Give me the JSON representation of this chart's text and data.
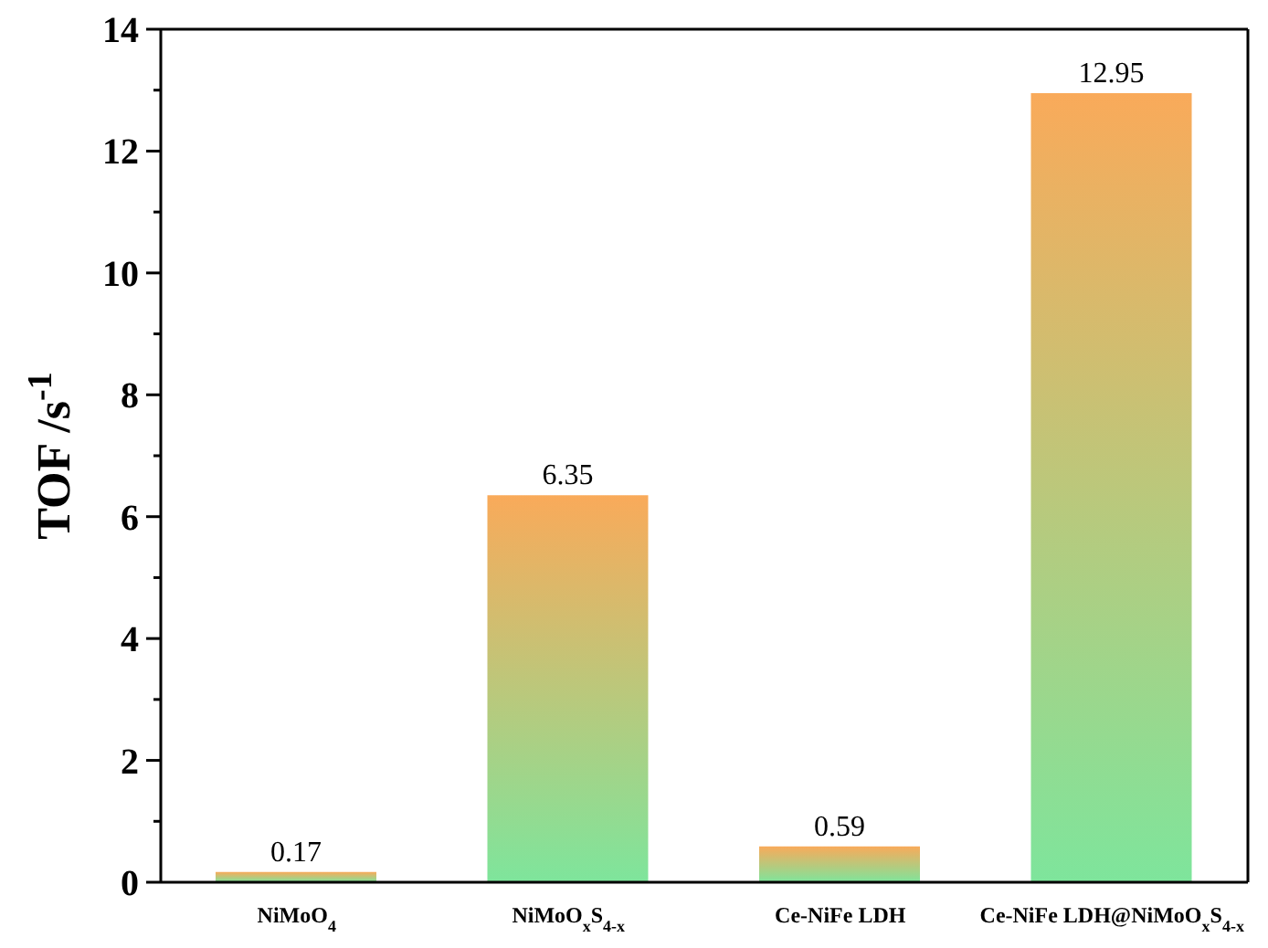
{
  "chart_data": {
    "type": "bar",
    "ylabel": "TOF /s$^{-1}$",
    "categories": [
      "NiMoO$_{4}$",
      "NiMoO$_{x}$S$_{4-x}$",
      "Ce-NiFe LDH",
      "Ce-NiFe LDH@NiMoO$_{x}$S$_{4-x}$"
    ],
    "values": [
      0.17,
      6.35,
      0.59,
      12.95
    ],
    "color": "#f9aa5a",
    "data_labels": true,
    "ylim": [
      0,
      14
    ],
    "yticks": [
      0,
      {
        "value": 1,
        "label": null
      },
      2,
      {
        "value": 3,
        "label": null
      },
      4,
      {
        "value": 5,
        "label": null
      },
      6,
      {
        "value": 7,
        "label": null
      },
      8,
      {
        "value": 9,
        "label": null
      },
      10,
      {
        "value": 11,
        "label": null
      },
      12,
      {
        "value": 13,
        "label": null
      },
      14
    ],
    "grid": false,
    "legend": false
  }
}
